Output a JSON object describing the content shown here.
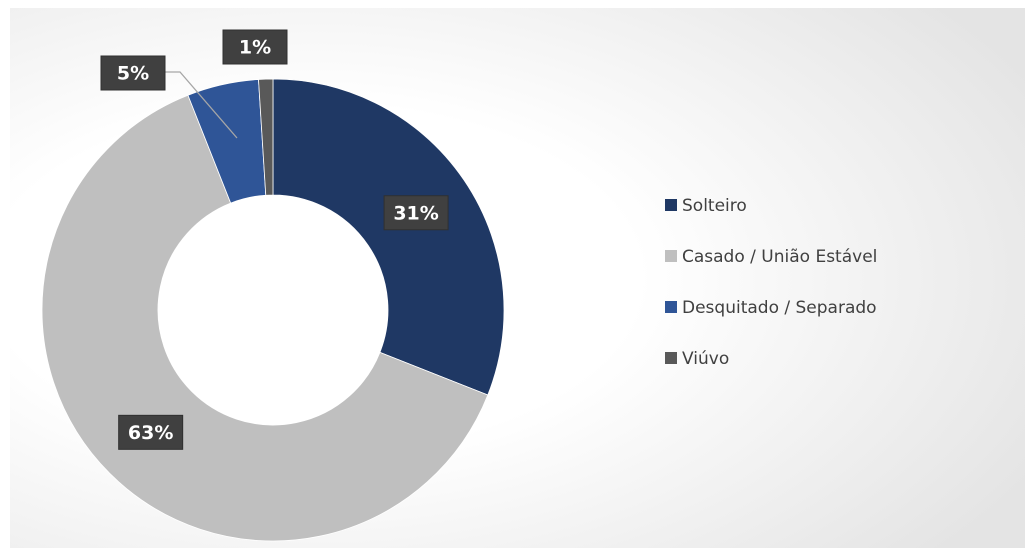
{
  "chart_data": {
    "type": "donut",
    "categories": [
      "Solteiro",
      "Casado / União Estável",
      "Desquitado / Separado",
      "Viúvo"
    ],
    "values": [
      31,
      63,
      5,
      1
    ],
    "value_labels": [
      "31%",
      "63%",
      "5%",
      "1%"
    ],
    "colors": [
      "#1f3864",
      "#bfbfbf",
      "#2f5597",
      "#595959"
    ],
    "legend": "right"
  }
}
